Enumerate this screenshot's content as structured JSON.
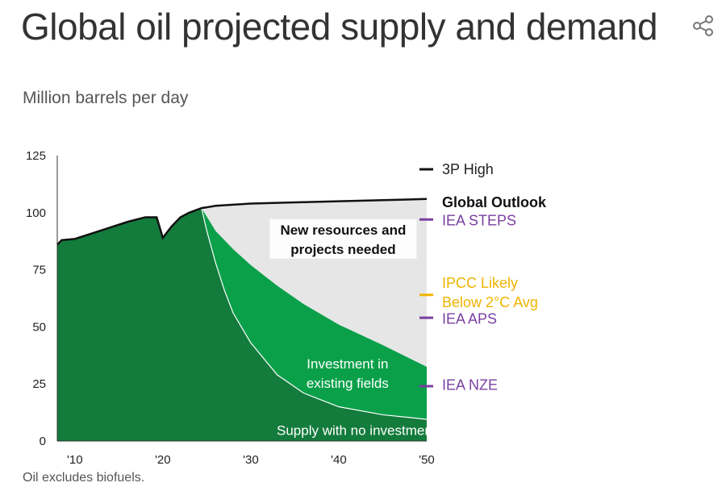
{
  "header": {
    "title": "Global oil projected supply and demand",
    "share_icon": "share-icon"
  },
  "subtitle": "Million barrels per day",
  "footnote": "Oil excludes biofuels.",
  "colors": {
    "supply_no_investment": "#137b3c",
    "investment_existing": "#0aa04a",
    "new_resources": "#e6e6e6",
    "demand_line": "#111111",
    "iea_marker": "#7a3fa0",
    "ipcc_marker": "#f0b400"
  },
  "chart_data": {
    "type": "area",
    "xlim": [
      2008,
      2050
    ],
    "ylim": [
      0,
      125
    ],
    "x_ticks": [
      2010,
      2020,
      2030,
      2040,
      2050
    ],
    "x_tick_labels": [
      "'10",
      "'20",
      "'30",
      "'40",
      "'50"
    ],
    "y_ticks": [
      0,
      25,
      50,
      75,
      100,
      125
    ],
    "y_tick_labels": [
      "0",
      "25",
      "50",
      "75",
      "100",
      "125"
    ],
    "series": [
      {
        "name": "Supply with no investment",
        "x": [
          2008,
          2008.5,
          2010,
          2012,
          2014,
          2016,
          2018,
          2019.3,
          2020,
          2021,
          2022,
          2023,
          2024.4,
          2025,
          2026,
          2027,
          2028,
          2030,
          2033,
          2036,
          2040,
          2045,
          2050
        ],
        "values": [
          86,
          88,
          88.5,
          91,
          93.5,
          96,
          98,
          98,
          89,
          94,
          98,
          100,
          102,
          92,
          78,
          66,
          56,
          43,
          29,
          21,
          15,
          11.5,
          9.5
        ]
      },
      {
        "name": "Investment in existing fields",
        "x": [
          2024.4,
          2026,
          2028,
          2030,
          2033,
          2036,
          2040,
          2045,
          2050
        ],
        "values": [
          102,
          92,
          84,
          77,
          68,
          60,
          51,
          42,
          32.5
        ]
      },
      {
        "name": "Global Outlook",
        "x": [
          2008,
          2008.5,
          2010,
          2012,
          2014,
          2016,
          2018,
          2019.3,
          2020,
          2021,
          2022,
          2023,
          2024.4,
          2026,
          2030,
          2035,
          2040,
          2045,
          2050
        ],
        "values": [
          86,
          88,
          88.5,
          91,
          93.5,
          96,
          98,
          98,
          89,
          94,
          98,
          100,
          102,
          103,
          104,
          104.5,
          105,
          105.5,
          106
        ]
      }
    ],
    "area_labels": [
      {
        "lines": [
          "New resources and",
          "projects needed"
        ],
        "x": 2040.5,
        "y": 88
      },
      {
        "lines": [
          "Investment in",
          "existing fields"
        ],
        "x": 2041,
        "y": 29
      },
      {
        "lines": [
          "Supply with no investment"
        ],
        "x": 2042,
        "y": 4
      }
    ],
    "markers": [
      {
        "label": "3P High",
        "value": 119,
        "label_value": 119,
        "color": "#111111",
        "bold": false,
        "text_color": "#222222"
      },
      {
        "label": "Global Outlook",
        "value": 106,
        "label_value": 104.5,
        "color": "#111111",
        "bold": true,
        "text_color": "#111111",
        "no_tick": true
      },
      {
        "label": "IEA STEPS",
        "value": 97,
        "label_value": 96.5,
        "color": "#7a3fa0",
        "bold": false,
        "text_color": "#7a3fa0"
      },
      {
        "label": "IPCC Likely\nBelow 2°C Avg",
        "value": 64,
        "label_value": 65,
        "color": "#f0b400",
        "bold": false,
        "text_color": "#f0b400"
      },
      {
        "label": "IEA APS",
        "value": 54,
        "label_value": 53.5,
        "color": "#7a3fa0",
        "bold": false,
        "text_color": "#7a3fa0"
      },
      {
        "label": "IEA NZE",
        "value": 24,
        "label_value": 24.5,
        "color": "#7a3fa0",
        "bold": false,
        "text_color": "#7a3fa0"
      }
    ],
    "grid": false,
    "legend": "right"
  }
}
